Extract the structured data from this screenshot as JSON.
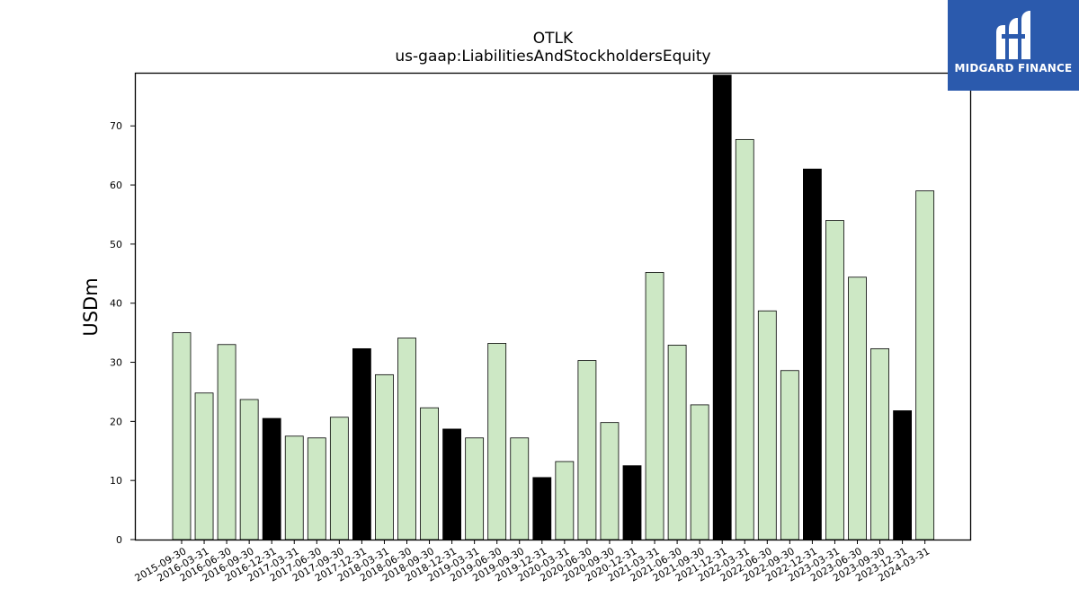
{
  "chart_data": {
    "type": "bar",
    "title": "OTLK",
    "subtitle": "us-gaap:LiabilitiesAndStockholdersEquity",
    "ylabel": "USDm",
    "xlabel": "",
    "ylim": [
      0,
      79
    ],
    "yticks": [
      0,
      10,
      20,
      30,
      40,
      50,
      60,
      70
    ],
    "grid": false,
    "colors": {
      "quarter": "#cde8c5",
      "year_end": "#000000",
      "edge": "#000000"
    },
    "categories": [
      "2015-09-30",
      "2016-03-31",
      "2016-06-30",
      "2016-09-30",
      "2016-12-31",
      "2017-03-31",
      "2017-06-30",
      "2017-09-30",
      "2017-12-31",
      "2018-03-31",
      "2018-06-30",
      "2018-09-30",
      "2018-12-31",
      "2019-03-31",
      "2019-06-30",
      "2019-09-30",
      "2019-12-31",
      "2020-03-31",
      "2020-06-30",
      "2020-09-30",
      "2020-12-31",
      "2021-03-31",
      "2021-06-30",
      "2021-09-30",
      "2021-12-31",
      "2022-03-31",
      "2022-06-30",
      "2022-09-30",
      "2022-12-31",
      "2023-03-31",
      "2023-06-30",
      "2023-09-30",
      "2023-12-31",
      "2024-03-31"
    ],
    "values": [
      35.0,
      24.8,
      33.0,
      23.7,
      20.5,
      17.5,
      17.2,
      20.7,
      32.3,
      27.9,
      34.1,
      22.3,
      18.7,
      17.2,
      33.2,
      17.2,
      10.5,
      13.2,
      30.3,
      19.8,
      12.5,
      45.2,
      32.9,
      22.8,
      78.6,
      67.7,
      38.7,
      28.6,
      62.7,
      54.0,
      44.4,
      32.3,
      21.8,
      59.0
    ],
    "highlight": [
      false,
      false,
      false,
      false,
      true,
      false,
      false,
      false,
      true,
      false,
      false,
      false,
      true,
      false,
      false,
      false,
      true,
      false,
      false,
      false,
      true,
      false,
      false,
      false,
      true,
      false,
      false,
      false,
      true,
      false,
      false,
      false,
      true,
      false
    ]
  },
  "logo": {
    "text": "MIDGARD FINANCE"
  }
}
